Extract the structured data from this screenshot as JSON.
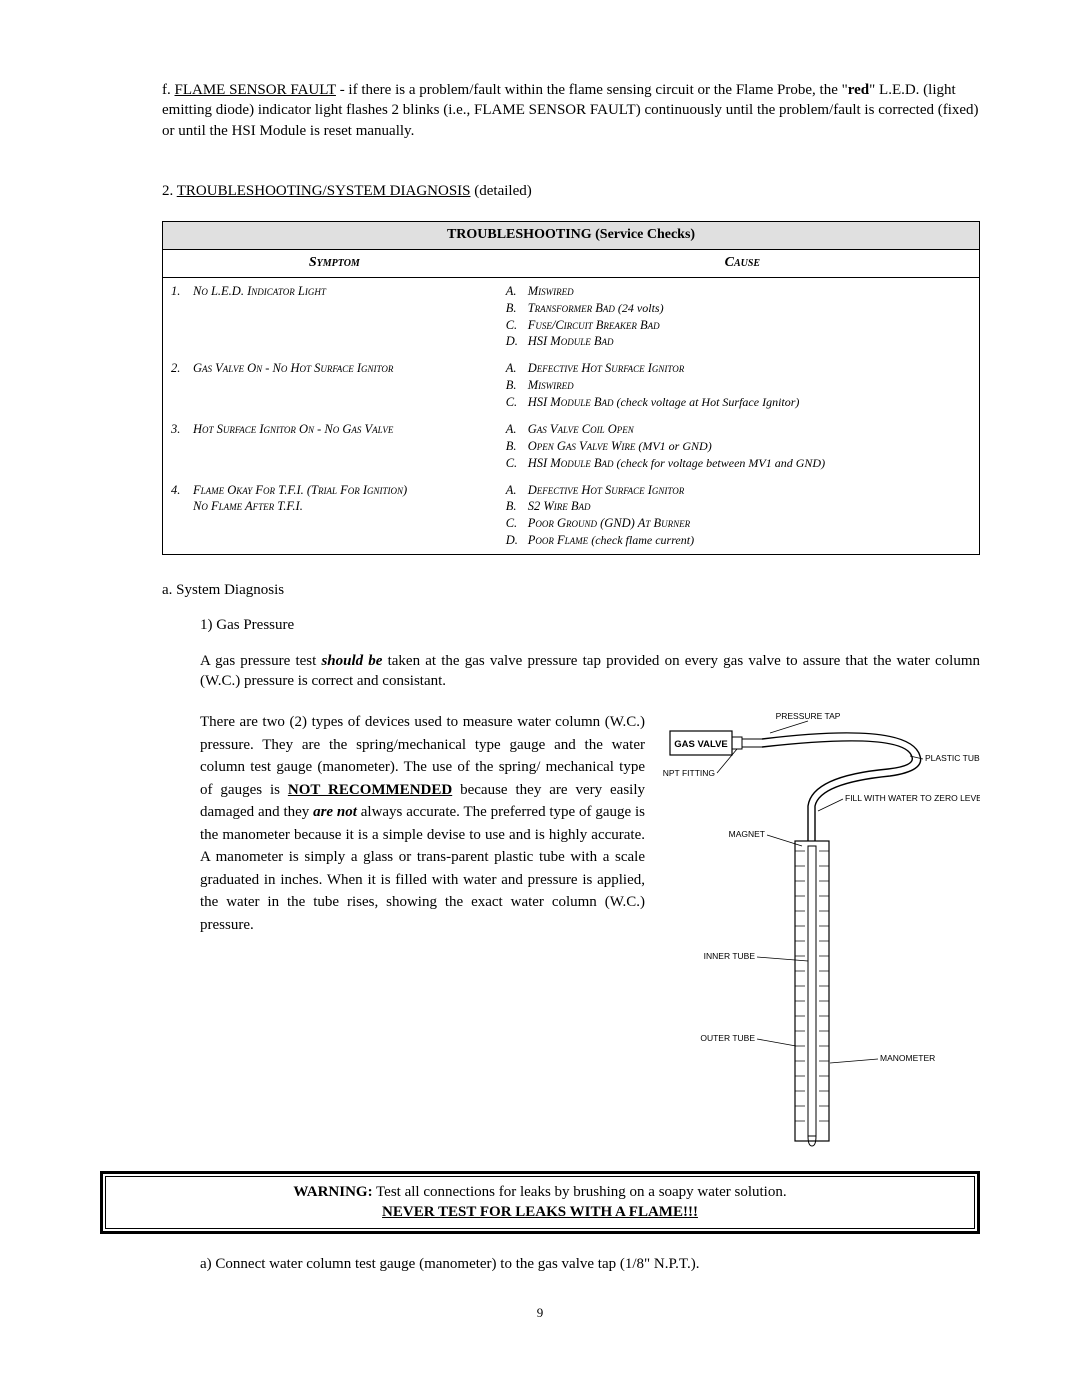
{
  "paraF": {
    "label": "f. ",
    "faultName": "FLAME SENSOR FAULT",
    "text1": " - if there is a problem/fault within the flame sensing circuit or the Flame Probe, the \"",
    "red": "red",
    "text2": "\" L.E.D. (light emitting diode) indicator light flashes 2 blinks (i.e., FLAME SENSOR FAULT) continuously until the problem/fault is corrected (fixed) or until the HSI Module is reset manually."
  },
  "section2": {
    "num": "2. ",
    "heading": "TROUBLESHOOTING/SYSTEM DIAGNOSIS",
    "detailed": " (detailed)"
  },
  "table": {
    "title": "TROUBLESHOOTING (Service Checks)",
    "col1": "Symptom",
    "col2": "Cause",
    "rows": [
      {
        "num": "1.",
        "symptom": "No L.E.D. Indicator Light",
        "causes": [
          {
            "l": "A.",
            "t": "Miswired"
          },
          {
            "l": "B.",
            "t": "Transformer Bad",
            "n": " (24 volts)"
          },
          {
            "l": "C.",
            "t": "Fuse/Circuit Breaker Bad"
          },
          {
            "l": "D.",
            "t": "HSI Module Bad"
          }
        ]
      },
      {
        "num": "2.",
        "symptom": "Gas Valve On - No Hot Surface Ignitor",
        "causes": [
          {
            "l": "A.",
            "t": "Defective Hot Surface Ignitor"
          },
          {
            "l": "B.",
            "t": "Miswired"
          },
          {
            "l": "C.",
            "t": "HSI Module Bad",
            "n": " (check voltage at Hot Surface Ignitor)"
          }
        ]
      },
      {
        "num": "3.",
        "symptom": "Hot Surface Ignitor On - No Gas Valve",
        "causes": [
          {
            "l": "A.",
            "t": "Gas Valve Coil Open"
          },
          {
            "l": "B.",
            "t": "Open Gas Valve Wire",
            "n": " (MV1 or GND)"
          },
          {
            "l": "C.",
            "t": "HSI Module Bad",
            "n": " (check for voltage between MV1 and GND)"
          }
        ]
      },
      {
        "num": "4.",
        "symptom": "Flame Okay For T.F.I. (Trial For Ignition)",
        "symptom2": "No Flame After T.F.I.",
        "causes": [
          {
            "l": "A.",
            "t": "Defective Hot Surface Ignitor"
          },
          {
            "l": "B.",
            "t": "S2 Wire Bad"
          },
          {
            "l": "C.",
            "t": "Poor Ground (GND) At Burner"
          },
          {
            "l": "D.",
            "t": "Poor Flame ",
            "n": " (check flame current)"
          }
        ]
      }
    ]
  },
  "subA": "a. System Diagnosis",
  "sub1": "1) Gas Pressure",
  "paraShould": {
    "t1": "A gas pressure test ",
    "should": "should be",
    "t2": " taken at the gas valve pressure tap provided on every gas valve to assure that the water column (W.C.) pressure is correct and consistant."
  },
  "twoCol": {
    "t1": "There are two (2) types of devices used to measure water column (W.C.) pressure. They are the spring/mechanical type gauge and the water column test gauge (manometer). The use of the spring/ mechanical type of gauges is ",
    "not": "NOT RECOMMENDED",
    "t2": " because they are very easily damaged and they ",
    "arenot": "are not",
    "t3": " always accurate. The preferred type of gauge is the manometer because it is a simple devise to use and is highly accurate. A manometer is simply a glass or trans-parent plastic tube with a scale graduated in inches. When it is filled with water and pressure is applied, the water in the tube rises, showing the exact water column (W.C.) pressure."
  },
  "diagram": {
    "gasValve": "GAS VALVE",
    "pressureTap": "PRESSURE TAP",
    "plasticTubing": "PLASTIC TUBING",
    "nptFitting": "1/8 NPT FITTING",
    "fillWater": "FILL WITH WATER TO ZERO LEVEL",
    "magnet": "MAGNET",
    "innerTube": "INNER TUBE",
    "outerTube": "OUTER TUBE",
    "manometer": "MANOMETER"
  },
  "warning": {
    "label": "WARNING:",
    "text": " Test all connections for leaks by brushing on a soapy water solution.",
    "never": "NEVER TEST FOR LEAKS WITH A FLAME!!!"
  },
  "paraA2": "a) Connect water column test gauge (manometer) to the gas valve tap (1/8\" N.P.T.).",
  "pageNum": "9"
}
